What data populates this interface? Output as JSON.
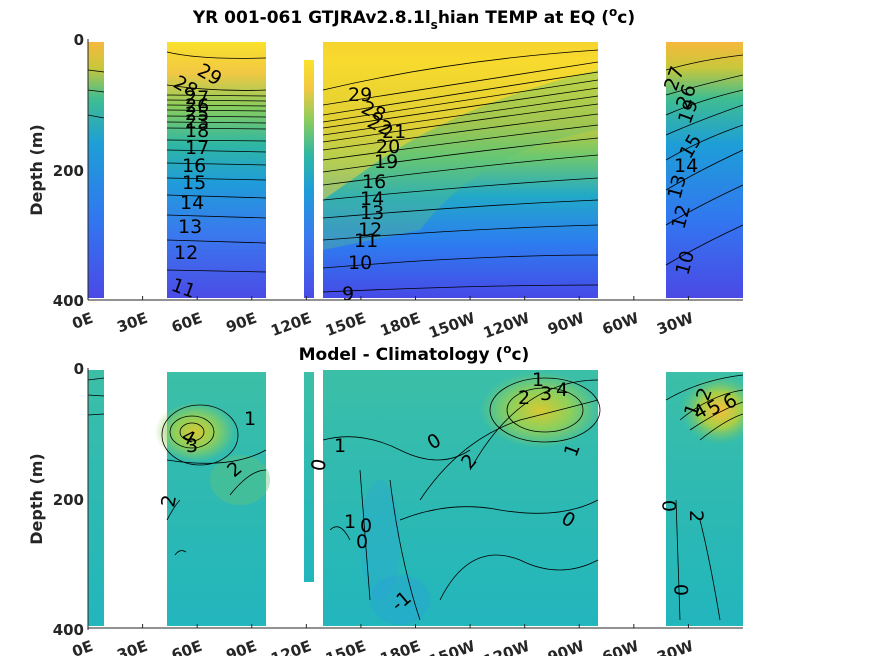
{
  "chart_data": [
    {
      "type": "heatmap",
      "title": "YR 001-061 GTJRAv2.8.1l",
      "title_subscript": "s",
      "title_rest": "hian TEMP at EQ (",
      "title_sup": "o",
      "title_end": "c)",
      "ylabel": "Depth (m)",
      "ylim": [
        400,
        0
      ],
      "y_ticks": [
        "0",
        "200",
        "400"
      ],
      "x_tick_labels": [
        "0E",
        "30E",
        "60E",
        "90E",
        "120E",
        "150E",
        "180E",
        "150W",
        "120W",
        "90W",
        "60W",
        "30W"
      ],
      "contour_labels": [
        "29",
        "28",
        "27",
        "26",
        "25",
        "24",
        "23",
        "22",
        "21",
        "20",
        "19",
        "18",
        "17",
        "16",
        "15",
        "14",
        "13",
        "12",
        "11",
        "10",
        "9"
      ],
      "colormap": "parula",
      "land_gaps_lon": [
        [
          20,
          50
        ],
        [
          105,
          125
        ],
        [
          270,
          300
        ]
      ]
    },
    {
      "type": "heatmap",
      "title": "Model - Climatology (",
      "title_sup": "o",
      "title_end": "c)",
      "ylabel": "Depth (m)",
      "ylim": [
        400,
        0
      ],
      "y_ticks": [
        "0",
        "200",
        "400"
      ],
      "x_tick_labels": [
        "0E",
        "30E",
        "60E",
        "90E",
        "120E",
        "150E",
        "180E",
        "150W",
        "120W",
        "90W",
        "60W",
        "30W"
      ],
      "contour_labels": [
        "1",
        "2",
        "3",
        "4",
        "5",
        "6",
        "0",
        "-1",
        "2",
        "1",
        "0"
      ],
      "colormap": "parula",
      "land_gaps_lon": [
        [
          20,
          50
        ],
        [
          105,
          125
        ],
        [
          270,
          300
        ]
      ]
    }
  ],
  "colors": {
    "warm": "#f9d32a",
    "hot": "#fbb33a",
    "mid": "#35b7a5",
    "cool": "#2a82e0",
    "cold": "#4a4fe8",
    "anom_base": "#2bb8b4",
    "anom_pos": "#7ed05a"
  }
}
